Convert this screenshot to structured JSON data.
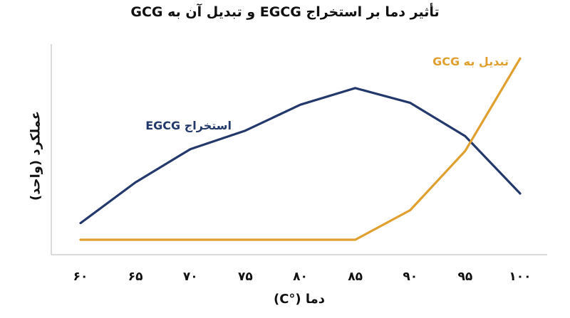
{
  "chart_data": {
    "type": "line",
    "title": "تأثیر دما بر استخراج EGCG و تبدیل آن به GCG",
    "xlabel": "دما (°C)",
    "ylabel": "عملکرد (واحد)",
    "x": [
      60,
      65,
      70,
      75,
      80,
      85,
      90,
      95,
      100
    ],
    "x_tick_labels": [
      "۶۰",
      "۶۵",
      "۷۰",
      "۷۵",
      "۸۰",
      "۸۵",
      "۹۰",
      "۹۵",
      "۱۰۰"
    ],
    "ylim": [
      0,
      100
    ],
    "series": [
      {
        "name": "استخراج EGCG",
        "color": "#24396b",
        "values": [
          9,
          31,
          49,
          59,
          73,
          82,
          74,
          56,
          25
        ]
      },
      {
        "name": "تبدیل به GCG",
        "color": "#e0a030",
        "values": [
          0,
          0,
          0,
          0,
          0,
          0,
          16,
          48,
          98
        ]
      }
    ],
    "grid": false,
    "legend": "inline labels"
  }
}
